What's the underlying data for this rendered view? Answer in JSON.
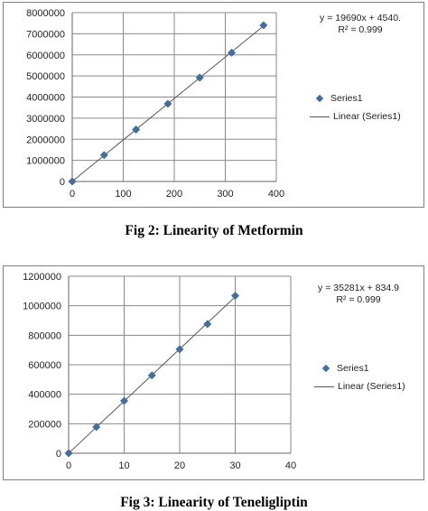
{
  "chart_data": [
    {
      "type": "scatter",
      "x": [
        0,
        62.5,
        125,
        187.5,
        250,
        312.5,
        375
      ],
      "series": [
        {
          "name": "Series1",
          "values": [
            0,
            1250000,
            2460000,
            3680000,
            4920000,
            6100000,
            7400000
          ],
          "color": "#3f6fa8"
        }
      ],
      "trendline_name": "Linear (Series1)",
      "equation": "y = 19690x + 4540.",
      "r2": "R² = 0.999",
      "xlim": [
        0,
        400
      ],
      "ylim": [
        0,
        8000000
      ],
      "xticks": [
        0,
        100,
        200,
        300,
        400
      ],
      "yticks": [
        0,
        1000000,
        2000000,
        3000000,
        4000000,
        5000000,
        6000000,
        7000000,
        8000000
      ],
      "grid": true,
      "legend_position": "right",
      "caption": "Fig 2: Linearity of Metformin"
    },
    {
      "type": "scatter",
      "x": [
        0,
        5,
        10,
        15,
        20,
        25,
        30
      ],
      "series": [
        {
          "name": "Series1",
          "values": [
            0,
            178000,
            355000,
            528000,
            705000,
            876000,
            1068000
          ],
          "color": "#3f6fa8"
        }
      ],
      "trendline_name": "Linear (Series1)",
      "equation": "y = 35281x + 834.9",
      "r2": "R² = 0.999",
      "xlim": [
        0,
        40
      ],
      "ylim": [
        0,
        1200000
      ],
      "xticks": [
        0,
        10,
        20,
        30,
        40
      ],
      "yticks": [
        0,
        200000,
        400000,
        600000,
        800000,
        1000000,
        1200000
      ],
      "grid": true,
      "legend_position": "right",
      "caption": "Fig 3: Linearity of Teneligliptin"
    }
  ]
}
